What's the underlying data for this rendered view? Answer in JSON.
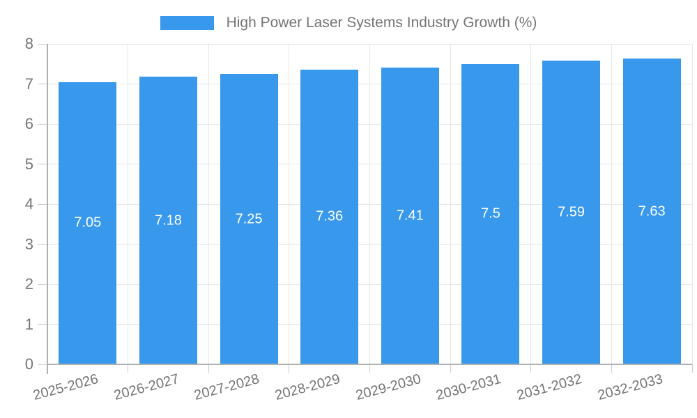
{
  "chart_data": {
    "type": "bar",
    "title": "High Power Laser Systems Industry Growth (%)",
    "categories": [
      "2025-2026",
      "2026-2027",
      "2027-2028",
      "2028-2029",
      "2029-2030",
      "2030-2031",
      "2031-2032",
      "2032-2033"
    ],
    "values": [
      7.05,
      7.18,
      7.25,
      7.36,
      7.41,
      7.5,
      7.59,
      7.63
    ],
    "value_labels": [
      "7.05",
      "7.18",
      "7.25",
      "7.36",
      "7.41",
      "7.5",
      "7.59",
      "7.63"
    ],
    "xlabel": "",
    "ylabel": "",
    "ylim": [
      0,
      8
    ],
    "yticks": [
      0,
      1,
      2,
      3,
      4,
      5,
      6,
      7,
      8
    ],
    "grid": true,
    "legend_position": "top-center",
    "colors": {
      "bar": "#3899ec",
      "bar_value_text": "#ffffff",
      "axis_text": "#757575",
      "legend_text": "#757575",
      "gridline": "#e6e6e6",
      "axis_line": "#b0b0b0",
      "tick": "#cccccc",
      "background": "#ffffff"
    }
  }
}
